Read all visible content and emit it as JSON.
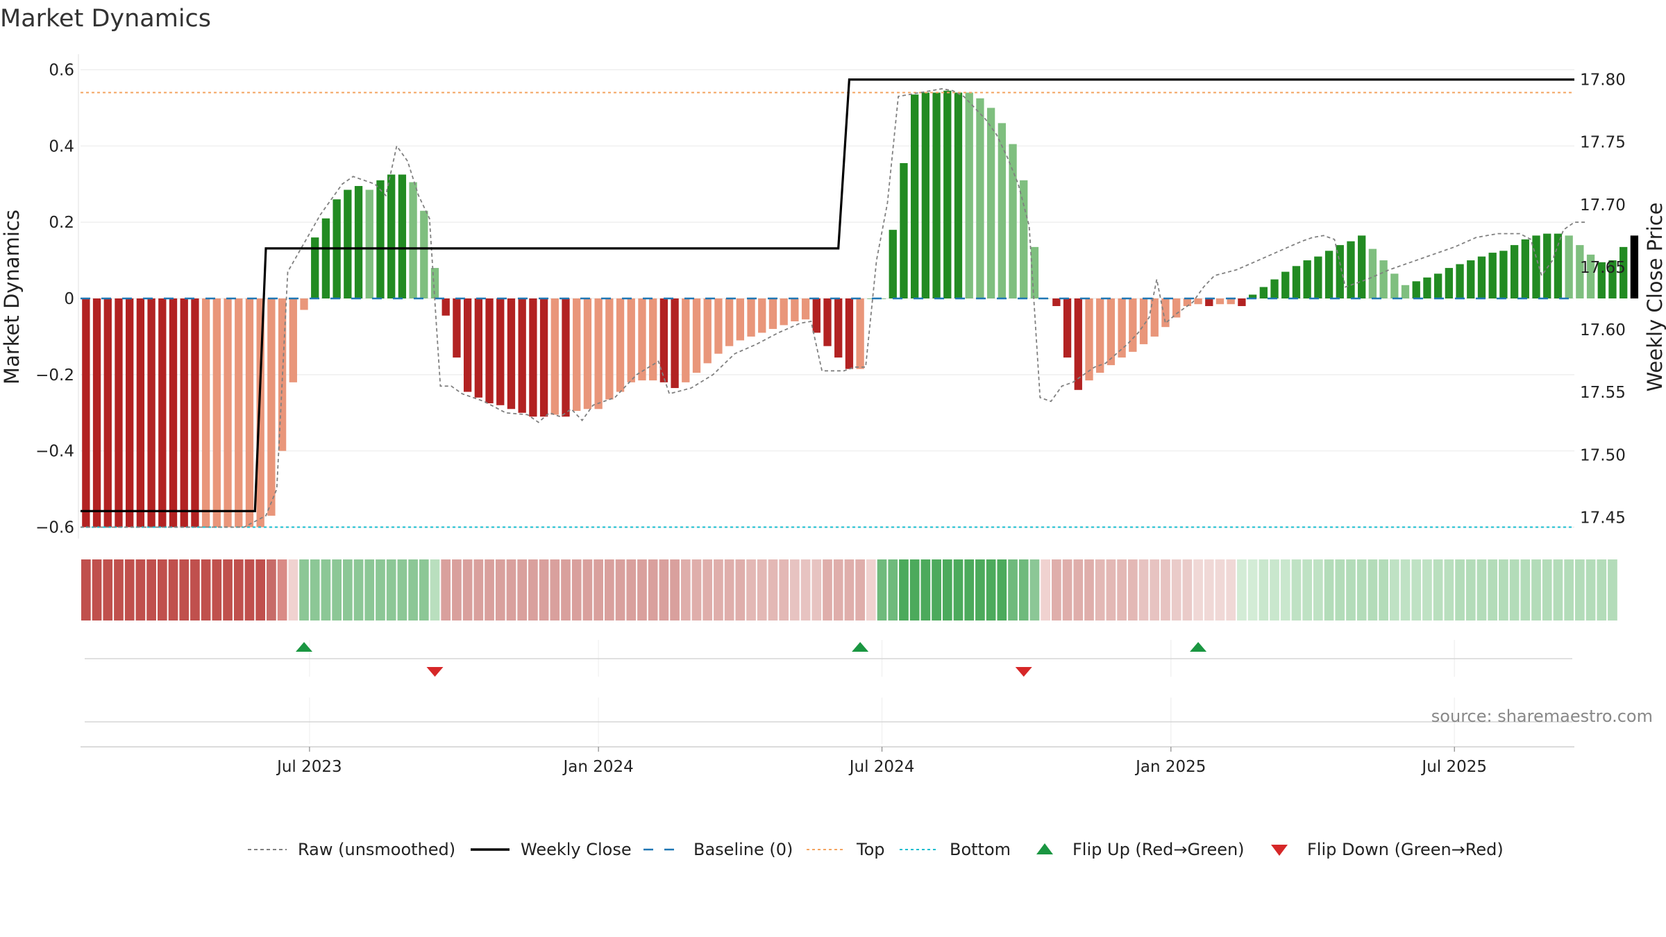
{
  "chart_data": {
    "type": "bar",
    "title": "Market Dynamics",
    "ylabel": "Market Dynamics",
    "y2label": "Weekly Close Price",
    "ylim": [
      -0.63,
      0.63
    ],
    "y2lim": [
      17.433,
      17.817
    ],
    "yticks": [
      {
        "value": 0.6,
        "label": "0.6"
      },
      {
        "value": 0.4,
        "label": "0.4"
      },
      {
        "value": 0.2,
        "label": "0.2"
      },
      {
        "value": 0,
        "label": "0"
      },
      {
        "value": -0.2,
        "label": "−0.2"
      },
      {
        "value": -0.4,
        "label": "−0.4"
      },
      {
        "value": -0.6,
        "label": "−0.6"
      }
    ],
    "y2ticks": [
      {
        "value": 17.8,
        "label": "17.80"
      },
      {
        "value": 17.75,
        "label": "17.75"
      },
      {
        "value": 17.7,
        "label": "17.70"
      },
      {
        "value": 17.65,
        "label": "17.65"
      },
      {
        "value": 17.6,
        "label": "17.60"
      },
      {
        "value": 17.55,
        "label": "17.55"
      },
      {
        "value": 17.5,
        "label": "17.50"
      },
      {
        "value": 17.45,
        "label": "17.45"
      }
    ],
    "xticks": [
      {
        "week": 21,
        "label": "Jul 2023"
      },
      {
        "week": 47.5,
        "label": "Jan 2024"
      },
      {
        "week": 73.5,
        "label": "Jul 2024"
      },
      {
        "week": 100,
        "label": "Jan 2025"
      },
      {
        "week": 126,
        "label": "Jul 2025"
      }
    ],
    "week_count": 137,
    "top_level": 0.54,
    "bottom_level": -0.6,
    "baseline_level": 0,
    "values": [
      -0.6,
      -0.6,
      -0.6,
      -0.6,
      -0.6,
      -0.6,
      -0.6,
      -0.6,
      -0.6,
      -0.6,
      -0.6,
      -0.6,
      -0.6,
      -0.6,
      -0.6,
      -0.6,
      -0.6,
      -0.57,
      -0.4,
      -0.22,
      -0.03,
      0.16,
      0.21,
      0.26,
      0.285,
      0.295,
      0.285,
      0.31,
      0.325,
      0.325,
      0.305,
      0.23,
      0.08,
      -0.045,
      -0.155,
      -0.245,
      -0.26,
      -0.275,
      -0.28,
      -0.29,
      -0.3,
      -0.31,
      -0.31,
      -0.305,
      -0.31,
      -0.295,
      -0.29,
      -0.29,
      -0.265,
      -0.245,
      -0.22,
      -0.215,
      -0.215,
      -0.22,
      -0.235,
      -0.22,
      -0.195,
      -0.17,
      -0.145,
      -0.125,
      -0.11,
      -0.1,
      -0.09,
      -0.08,
      -0.07,
      -0.06,
      -0.055,
      -0.09,
      -0.125,
      -0.155,
      -0.185,
      -0.185,
      0,
      0,
      0.18,
      0.355,
      0.535,
      0.54,
      0.54,
      0.545,
      0.54,
      0.54,
      0.525,
      0.5,
      0.46,
      0.405,
      0.31,
      0.135,
      0,
      -0.02,
      -0.155,
      -0.24,
      -0.215,
      -0.195,
      -0.175,
      -0.155,
      -0.14,
      -0.12,
      -0.1,
      -0.075,
      -0.05,
      -0.02,
      -0.015,
      -0.02,
      -0.015,
      -0.015,
      -0.02,
      0.01,
      0.03,
      0.05,
      0.07,
      0.085,
      0.1,
      0.11,
      0.125,
      0.14,
      0.15,
      0.165,
      0.13,
      0.1,
      0.065,
      0.035,
      0.045,
      0.055,
      0.065,
      0.08,
      0.09,
      0.1,
      0.11,
      0.12,
      0.125,
      0.14,
      0.155,
      0.165,
      0.17,
      0.17,
      0.165,
      0.14,
      0.115,
      0.095,
      0.1,
      0.135,
      0.165
    ],
    "bar_colors": [
      "#b22222",
      "#b22222",
      "#b22222",
      "#b22222",
      "#b22222",
      "#b22222",
      "#b22222",
      "#b22222",
      "#b22222",
      "#b22222",
      "#b22222",
      "#e9967a",
      "#e9967a",
      "#e9967a",
      "#e9967a",
      "#e9967a",
      "#e9967a",
      "#e9967a",
      "#e9967a",
      "#e9967a",
      "#e9967a",
      "#228b22",
      "#228b22",
      "#228b22",
      "#228b22",
      "#228b22",
      "#7fbf7f",
      "#228b22",
      "#228b22",
      "#228b22",
      "#7fbf7f",
      "#7fbf7f",
      "#7fbf7f",
      "#b22222",
      "#b22222",
      "#b22222",
      "#b22222",
      "#b22222",
      "#b22222",
      "#b22222",
      "#b22222",
      "#b22222",
      "#b22222",
      "#e9967a",
      "#b22222",
      "#e9967a",
      "#e9967a",
      "#e9967a",
      "#e9967a",
      "#e9967a",
      "#e9967a",
      "#e9967a",
      "#e9967a",
      "#b22222",
      "#b22222",
      "#e9967a",
      "#e9967a",
      "#e9967a",
      "#e9967a",
      "#e9967a",
      "#e9967a",
      "#e9967a",
      "#e9967a",
      "#e9967a",
      "#e9967a",
      "#e9967a",
      "#e9967a",
      "#b22222",
      "#b22222",
      "#b22222",
      "#b22222",
      "#e9967a",
      "#228b22",
      "#228b22",
      "#228b22",
      "#228b22",
      "#228b22",
      "#228b22",
      "#228b22",
      "#228b22",
      "#228b22",
      "#7fbf7f",
      "#7fbf7f",
      "#7fbf7f",
      "#7fbf7f",
      "#7fbf7f",
      "#7fbf7f",
      "#7fbf7f",
      "#7fbf7f",
      "#b22222",
      "#b22222",
      "#b22222",
      "#e9967a",
      "#e9967a",
      "#e9967a",
      "#e9967a",
      "#e9967a",
      "#e9967a",
      "#e9967a",
      "#e9967a",
      "#e9967a",
      "#e9967a",
      "#e9967a",
      "#b22222",
      "#e9967a",
      "#e9967a",
      "#b22222",
      "#228b22",
      "#228b22",
      "#228b22",
      "#228b22",
      "#228b22",
      "#228b22",
      "#228b22",
      "#228b22",
      "#228b22",
      "#228b22",
      "#228b22",
      "#7fbf7f",
      "#7fbf7f",
      "#7fbf7f",
      "#7fbf7f",
      "#228b22",
      "#228b22",
      "#228b22",
      "#228b22",
      "#228b22",
      "#228b22",
      "#228b22",
      "#228b22",
      "#228b22",
      "#228b22",
      "#228b22",
      "#228b22",
      "#228b22",
      "#228b22",
      "#7fbf7f",
      "#7fbf7f",
      "#7fbf7f",
      "#228b22",
      "#228b22",
      "#228b22"
    ],
    "raw": [
      {
        "week": 0,
        "value": -0.6
      },
      {
        "week": 10,
        "value": -0.6
      },
      {
        "week": 15,
        "value": -0.6
      },
      {
        "week": 17,
        "value": -0.57
      },
      {
        "week": 18,
        "value": -0.5
      },
      {
        "week": 19,
        "value": 0.07
      },
      {
        "week": 20,
        "value": 0.12
      },
      {
        "week": 22,
        "value": 0.22
      },
      {
        "week": 24,
        "value": 0.3
      },
      {
        "week": 25,
        "value": 0.32
      },
      {
        "week": 27,
        "value": 0.3
      },
      {
        "week": 28,
        "value": 0.27
      },
      {
        "week": 29,
        "value": 0.4
      },
      {
        "week": 30,
        "value": 0.36
      },
      {
        "week": 31,
        "value": 0.27
      },
      {
        "week": 32,
        "value": 0.21
      },
      {
        "week": 33,
        "value": -0.23
      },
      {
        "week": 34,
        "value": -0.23
      },
      {
        "week": 35,
        "value": -0.25
      },
      {
        "week": 37,
        "value": -0.27
      },
      {
        "week": 39,
        "value": -0.3
      },
      {
        "week": 41,
        "value": -0.305
      },
      {
        "week": 42,
        "value": -0.325
      },
      {
        "week": 43,
        "value": -0.3
      },
      {
        "week": 44,
        "value": -0.31
      },
      {
        "week": 45,
        "value": -0.29
      },
      {
        "week": 46,
        "value": -0.32
      },
      {
        "week": 47,
        "value": -0.28
      },
      {
        "week": 49,
        "value": -0.26
      },
      {
        "week": 51,
        "value": -0.2
      },
      {
        "week": 53,
        "value": -0.165
      },
      {
        "week": 54,
        "value": -0.25
      },
      {
        "week": 56,
        "value": -0.235
      },
      {
        "week": 58,
        "value": -0.2
      },
      {
        "week": 60,
        "value": -0.145
      },
      {
        "week": 62,
        "value": -0.12
      },
      {
        "week": 64,
        "value": -0.09
      },
      {
        "week": 66,
        "value": -0.065
      },
      {
        "week": 67,
        "value": -0.06
      },
      {
        "week": 68,
        "value": -0.19
      },
      {
        "week": 70,
        "value": -0.19
      },
      {
        "week": 71,
        "value": -0.18
      },
      {
        "week": 72,
        "value": -0.18
      },
      {
        "week": 73,
        "value": 0.1
      },
      {
        "week": 74,
        "value": 0.25
      },
      {
        "week": 75,
        "value": 0.53
      },
      {
        "week": 76,
        "value": 0.535
      },
      {
        "week": 77,
        "value": 0.54
      },
      {
        "week": 78,
        "value": 0.545
      },
      {
        "week": 79,
        "value": 0.55
      },
      {
        "week": 80,
        "value": 0.545
      },
      {
        "week": 81,
        "value": 0.53
      },
      {
        "week": 82,
        "value": 0.5
      },
      {
        "week": 83,
        "value": 0.47
      },
      {
        "week": 84,
        "value": 0.43
      },
      {
        "week": 85,
        "value": 0.37
      },
      {
        "week": 86,
        "value": 0.3
      },
      {
        "week": 87,
        "value": 0.19
      },
      {
        "week": 88,
        "value": -0.26
      },
      {
        "week": 89,
        "value": -0.27
      },
      {
        "week": 90,
        "value": -0.23
      },
      {
        "week": 91,
        "value": -0.22
      },
      {
        "week": 92,
        "value": -0.2
      },
      {
        "week": 93,
        "value": -0.18
      },
      {
        "week": 94,
        "value": -0.17
      },
      {
        "week": 95,
        "value": -0.145
      },
      {
        "week": 96,
        "value": -0.12
      },
      {
        "week": 97,
        "value": -0.09
      },
      {
        "week": 98,
        "value": -0.05
      },
      {
        "week": 98.7,
        "value": 0.05
      },
      {
        "week": 99.5,
        "value": -0.065
      },
      {
        "week": 100.5,
        "value": -0.04
      },
      {
        "week": 102,
        "value": -0.01
      },
      {
        "week": 103,
        "value": 0.03
      },
      {
        "week": 104,
        "value": 0.06
      },
      {
        "week": 106,
        "value": 0.075
      },
      {
        "week": 108,
        "value": 0.1
      },
      {
        "week": 110,
        "value": 0.125
      },
      {
        "week": 112,
        "value": 0.15
      },
      {
        "week": 113,
        "value": 0.16
      },
      {
        "week": 114,
        "value": 0.165
      },
      {
        "week": 115,
        "value": 0.155
      },
      {
        "week": 116,
        "value": 0.03
      },
      {
        "week": 117,
        "value": 0.04
      },
      {
        "week": 118,
        "value": 0.05
      },
      {
        "week": 120,
        "value": 0.075
      },
      {
        "week": 122,
        "value": 0.095
      },
      {
        "week": 124,
        "value": 0.115
      },
      {
        "week": 126,
        "value": 0.135
      },
      {
        "week": 128,
        "value": 0.16
      },
      {
        "week": 130,
        "value": 0.17
      },
      {
        "week": 132,
        "value": 0.17
      },
      {
        "week": 133,
        "value": 0.155
      },
      {
        "week": 134,
        "value": 0.06
      },
      {
        "week": 135,
        "value": 0.1
      },
      {
        "week": 136,
        "value": 0.18
      },
      {
        "week": 137,
        "value": 0.2
      },
      {
        "week": 138,
        "value": 0.2
      }
    ],
    "weekly_close": [
      {
        "week": 0,
        "price": 17.455
      },
      {
        "week": 16,
        "price": 17.455
      },
      {
        "week": 17,
        "price": 17.665
      },
      {
        "week": 69.5,
        "price": 17.665
      },
      {
        "week": 70.5,
        "price": 17.8
      },
      {
        "week": 137,
        "price": 17.8
      }
    ],
    "regime_strip": [
      "#c0504d",
      "#c0504d",
      "#c0504d",
      "#c0504d",
      "#c0504d",
      "#c0504d",
      "#c0504d",
      "#c0504d",
      "#c0504d",
      "#c0504d",
      "#c0504d",
      "#c0504d",
      "#c0504d",
      "#c0504d",
      "#c0504d",
      "#c0504d",
      "#c0504d",
      "#c76b68",
      "#d98a86",
      "#f0d2d0",
      "#8cc796",
      "#8cc796",
      "#8cc796",
      "#8cc796",
      "#8cc796",
      "#8cc796",
      "#8cc796",
      "#8cc796",
      "#8cc796",
      "#8cc796",
      "#8cc796",
      "#8cc796",
      "#b9dfbe",
      "#d9a09d",
      "#d9a09d",
      "#d9a09d",
      "#d9a09d",
      "#d9a09d",
      "#d9a09d",
      "#d9a09d",
      "#d9a09d",
      "#d9a09d",
      "#d9a09d",
      "#d9a09d",
      "#d9a09d",
      "#d9a09d",
      "#d9a09d",
      "#d9a09d",
      "#d9a09d",
      "#d9a09d",
      "#d9a09d",
      "#d9a09d",
      "#d9a09d",
      "#d9a09d",
      "#d9a09d",
      "#dfaeab",
      "#dfaeab",
      "#dfaeab",
      "#dfaeab",
      "#dfaeab",
      "#dfaeab",
      "#e3b8b5",
      "#e3b8b5",
      "#e3b8b5",
      "#e3b8b5",
      "#e7c3c1",
      "#e7c3c1",
      "#e7c3c1",
      "#dfaeab",
      "#dfaeab",
      "#dfaeab",
      "#dfaeab",
      "#f0d2d0",
      "#6fba7c",
      "#6fba7c",
      "#4caa5c",
      "#4caa5c",
      "#4caa5c",
      "#4caa5c",
      "#4caa5c",
      "#4caa5c",
      "#4caa5c",
      "#4caa5c",
      "#4caa5c",
      "#4caa5c",
      "#6fba7c",
      "#6fba7c",
      "#8cc796",
      "#f0d2d0",
      "#dfaeab",
      "#dfaeab",
      "#dfaeab",
      "#dfaeab",
      "#e3b8b5",
      "#e3b8b5",
      "#e3b8b5",
      "#e3b8b5",
      "#e7c3c1",
      "#e7c3c1",
      "#e7c3c1",
      "#eacbc9",
      "#eacbc9",
      "#f0d8d6",
      "#f0d8d6",
      "#f0d8d6",
      "#f0d8d6",
      "#d3ecd6",
      "#d3ecd6",
      "#c9e7cd",
      "#c9e7cd",
      "#c9e7cd",
      "#bfe2c4",
      "#bfe2c4",
      "#bfe2c4",
      "#b3dcb9",
      "#b3dcb9",
      "#b3dcb9",
      "#b3dcb9",
      "#b3dcb9",
      "#b3dcb9",
      "#bfe2c4",
      "#bfe2c4",
      "#bfe2c4",
      "#bfe2c4",
      "#b9dfbe",
      "#b9dfbe",
      "#b3dcb9",
      "#b3dcb9",
      "#b3dcb9",
      "#b3dcb9",
      "#b3dcb9",
      "#b3dcb9",
      "#b3dcb9",
      "#b3dcb9",
      "#b3dcb9",
      "#b3dcb9",
      "#b3dcb9",
      "#b3dcb9",
      "#b3dcb9",
      "#b3dcb9",
      "#b3dcb9"
    ],
    "flips_up": [
      20.5,
      71.5,
      102.5
    ],
    "flips_down": [
      32.5,
      86.5
    ],
    "source_text": "source: sharemaestro.com",
    "legend": [
      {
        "label": "Raw (unsmoothed)",
        "style": "dashed-gray"
      },
      {
        "label": "Weekly Close",
        "style": "solid-black"
      },
      {
        "label": "Baseline (0)",
        "style": "dashed-blue"
      },
      {
        "label": "Top",
        "style": "dotted-orange"
      },
      {
        "label": "Bottom",
        "style": "dotted-cyan"
      },
      {
        "label": "Flip Up (Red→Green)",
        "style": "triangle-up-green"
      },
      {
        "label": "Flip Down (Green→Red)",
        "style": "triangle-down-red"
      }
    ],
    "colors": {
      "raw": "#808080",
      "close": "#000000",
      "baseline": "#1f77b4",
      "top": "#f4a460",
      "bottom": "#17becf",
      "flip_up": "#1a9641",
      "flip_down": "#d62728",
      "grid": "#ececec"
    }
  }
}
